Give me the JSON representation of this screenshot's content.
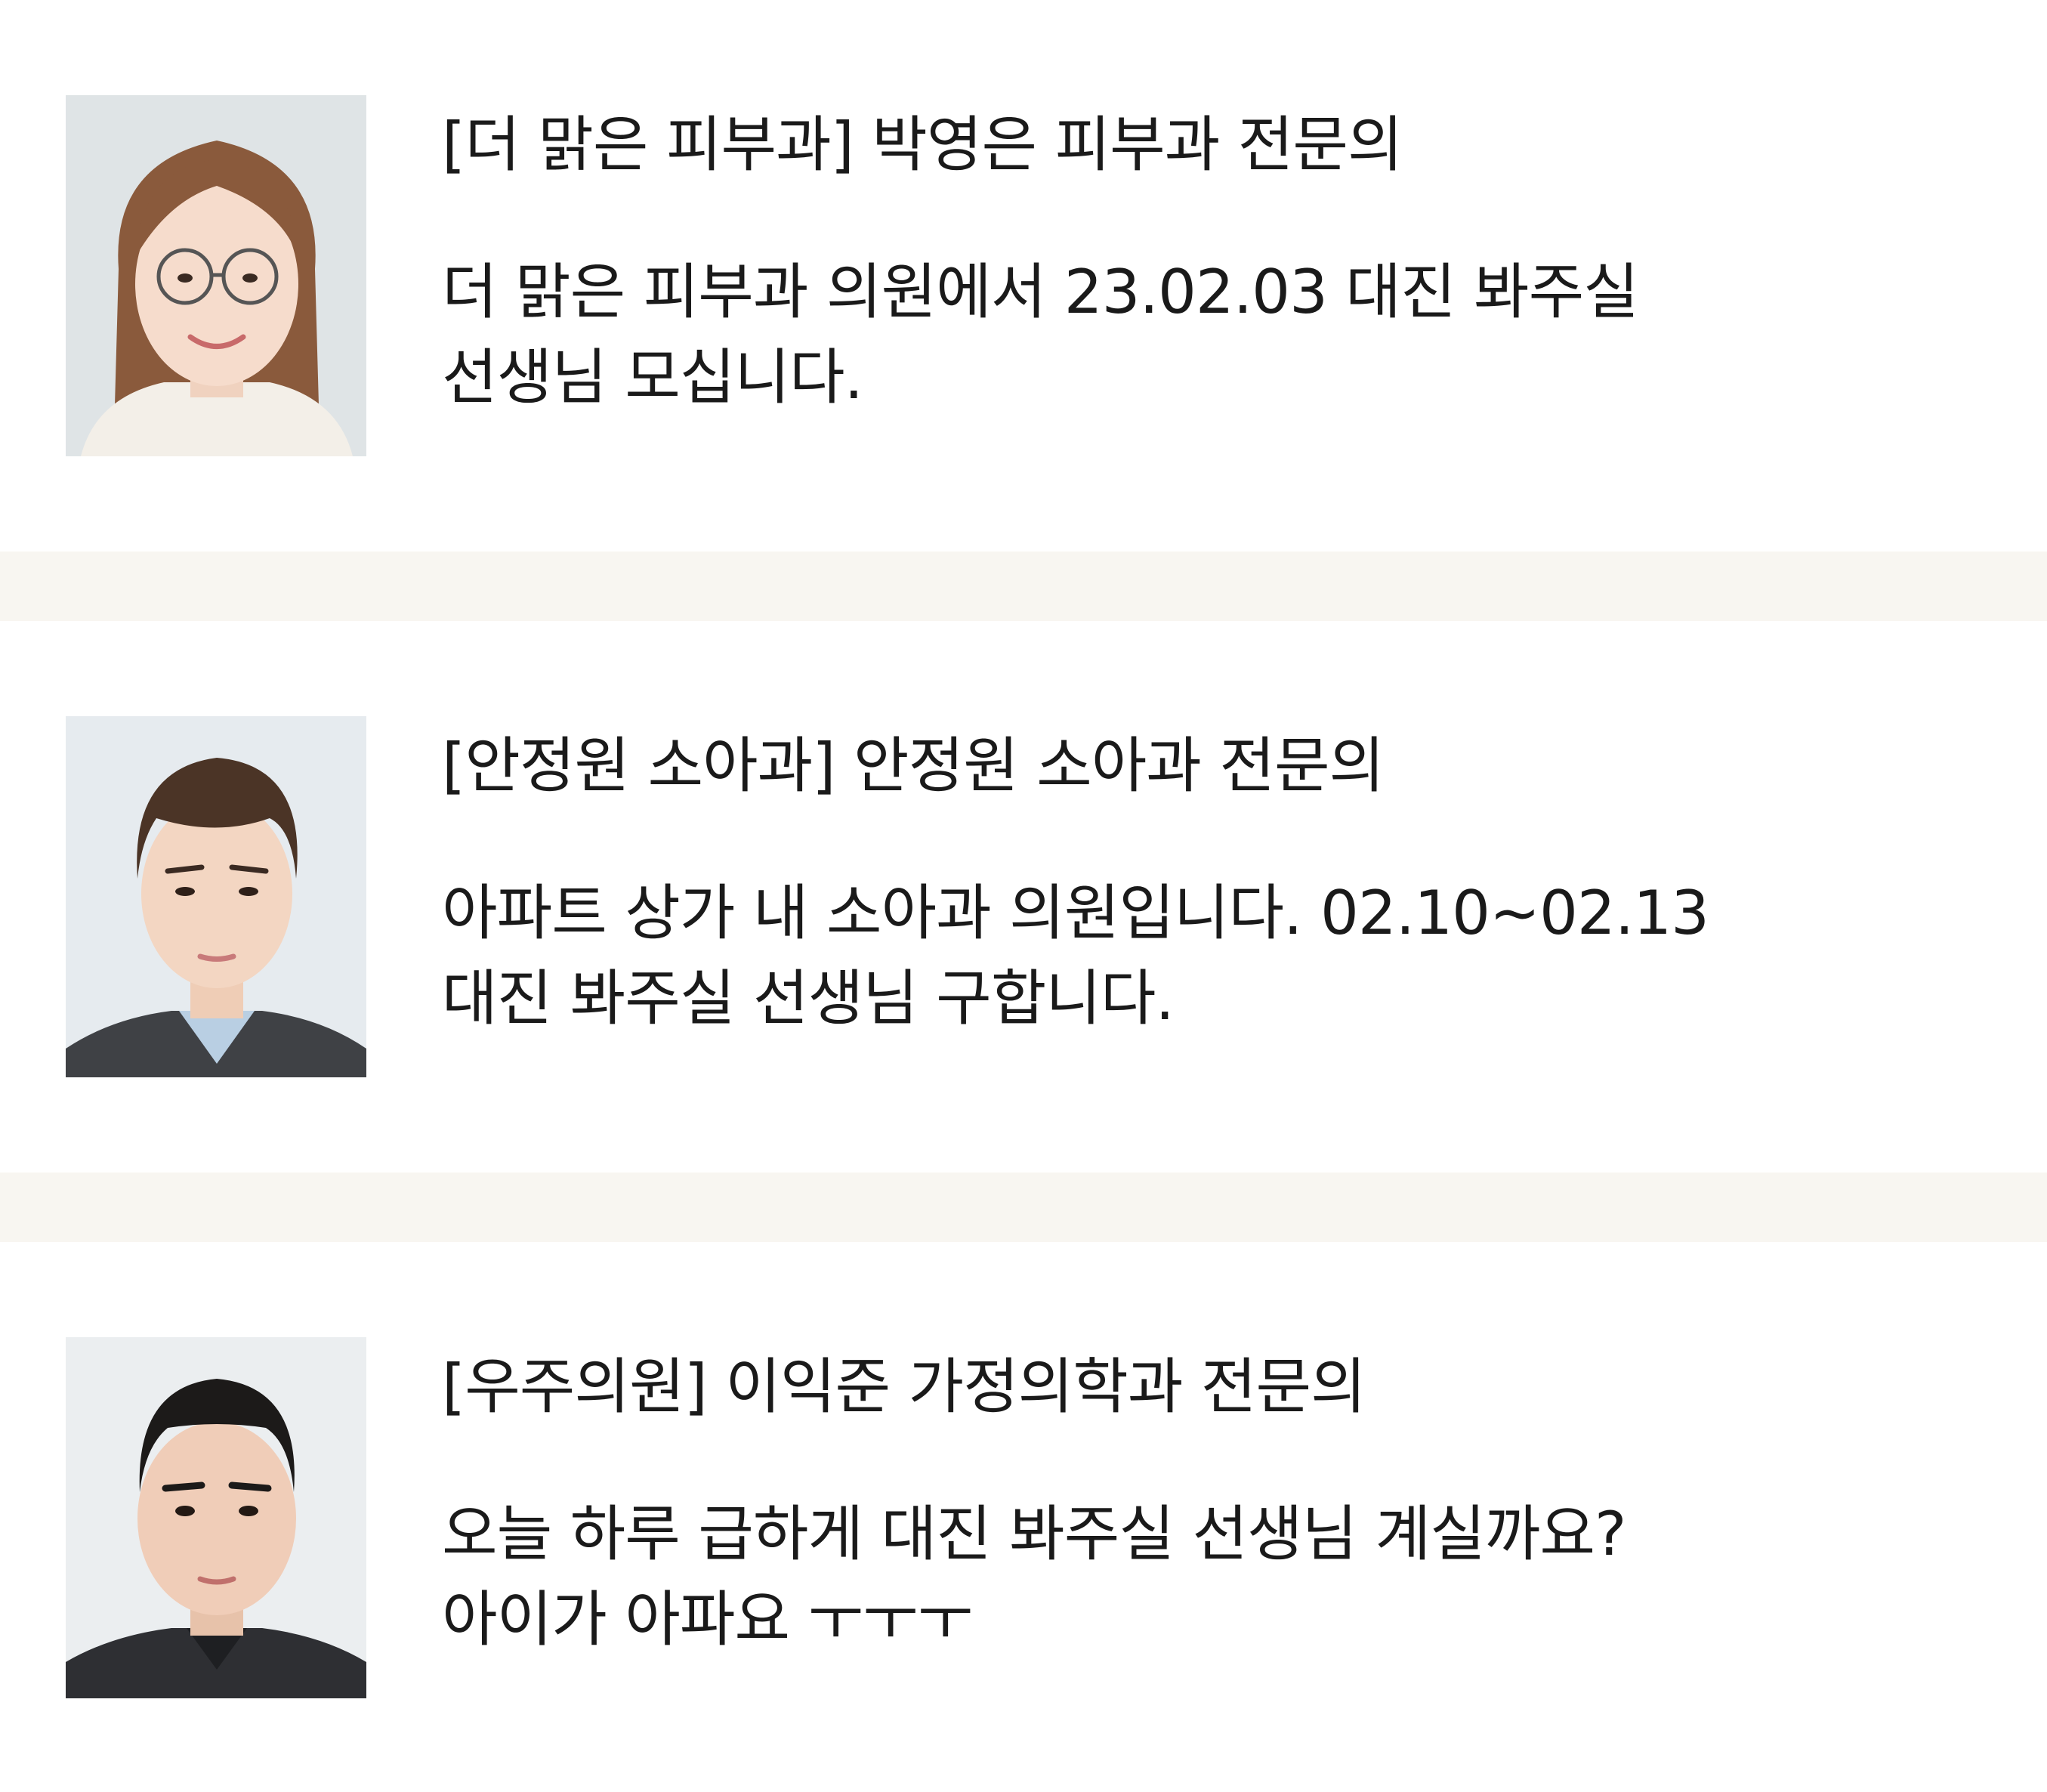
{
  "posts": [
    {
      "title": "[더 맑은 피부과] 박영은 피부과 전문의",
      "body_lines": [
        "더 맑은 피부과 의원에서 23.02.03 대진 봐주실",
        "선생님 모십니다."
      ],
      "avatar": "profile-photo-woman-glasses"
    },
    {
      "title": "[안정원 소아과] 안정원 소아과 전문의",
      "body_lines": [
        "아파트 상가 내 소아과 의원입니다. 02.10~02.13",
        "대진 봐주실 선생님 구합니다."
      ],
      "avatar": "profile-photo-man-brown-hair"
    },
    {
      "title": "[우주의원] 이익준 가정의학과 전문의",
      "body_lines": [
        "오늘 하루 급하게 대진 봐주실 선생님 계실까요?",
        "아이가 아파요 ㅜㅜㅜ"
      ],
      "avatar": "profile-photo-man-dark-hair"
    }
  ],
  "colors": {
    "background": "#ffffff",
    "divider": "#f8f6f1",
    "text": "#1a1a1a"
  }
}
